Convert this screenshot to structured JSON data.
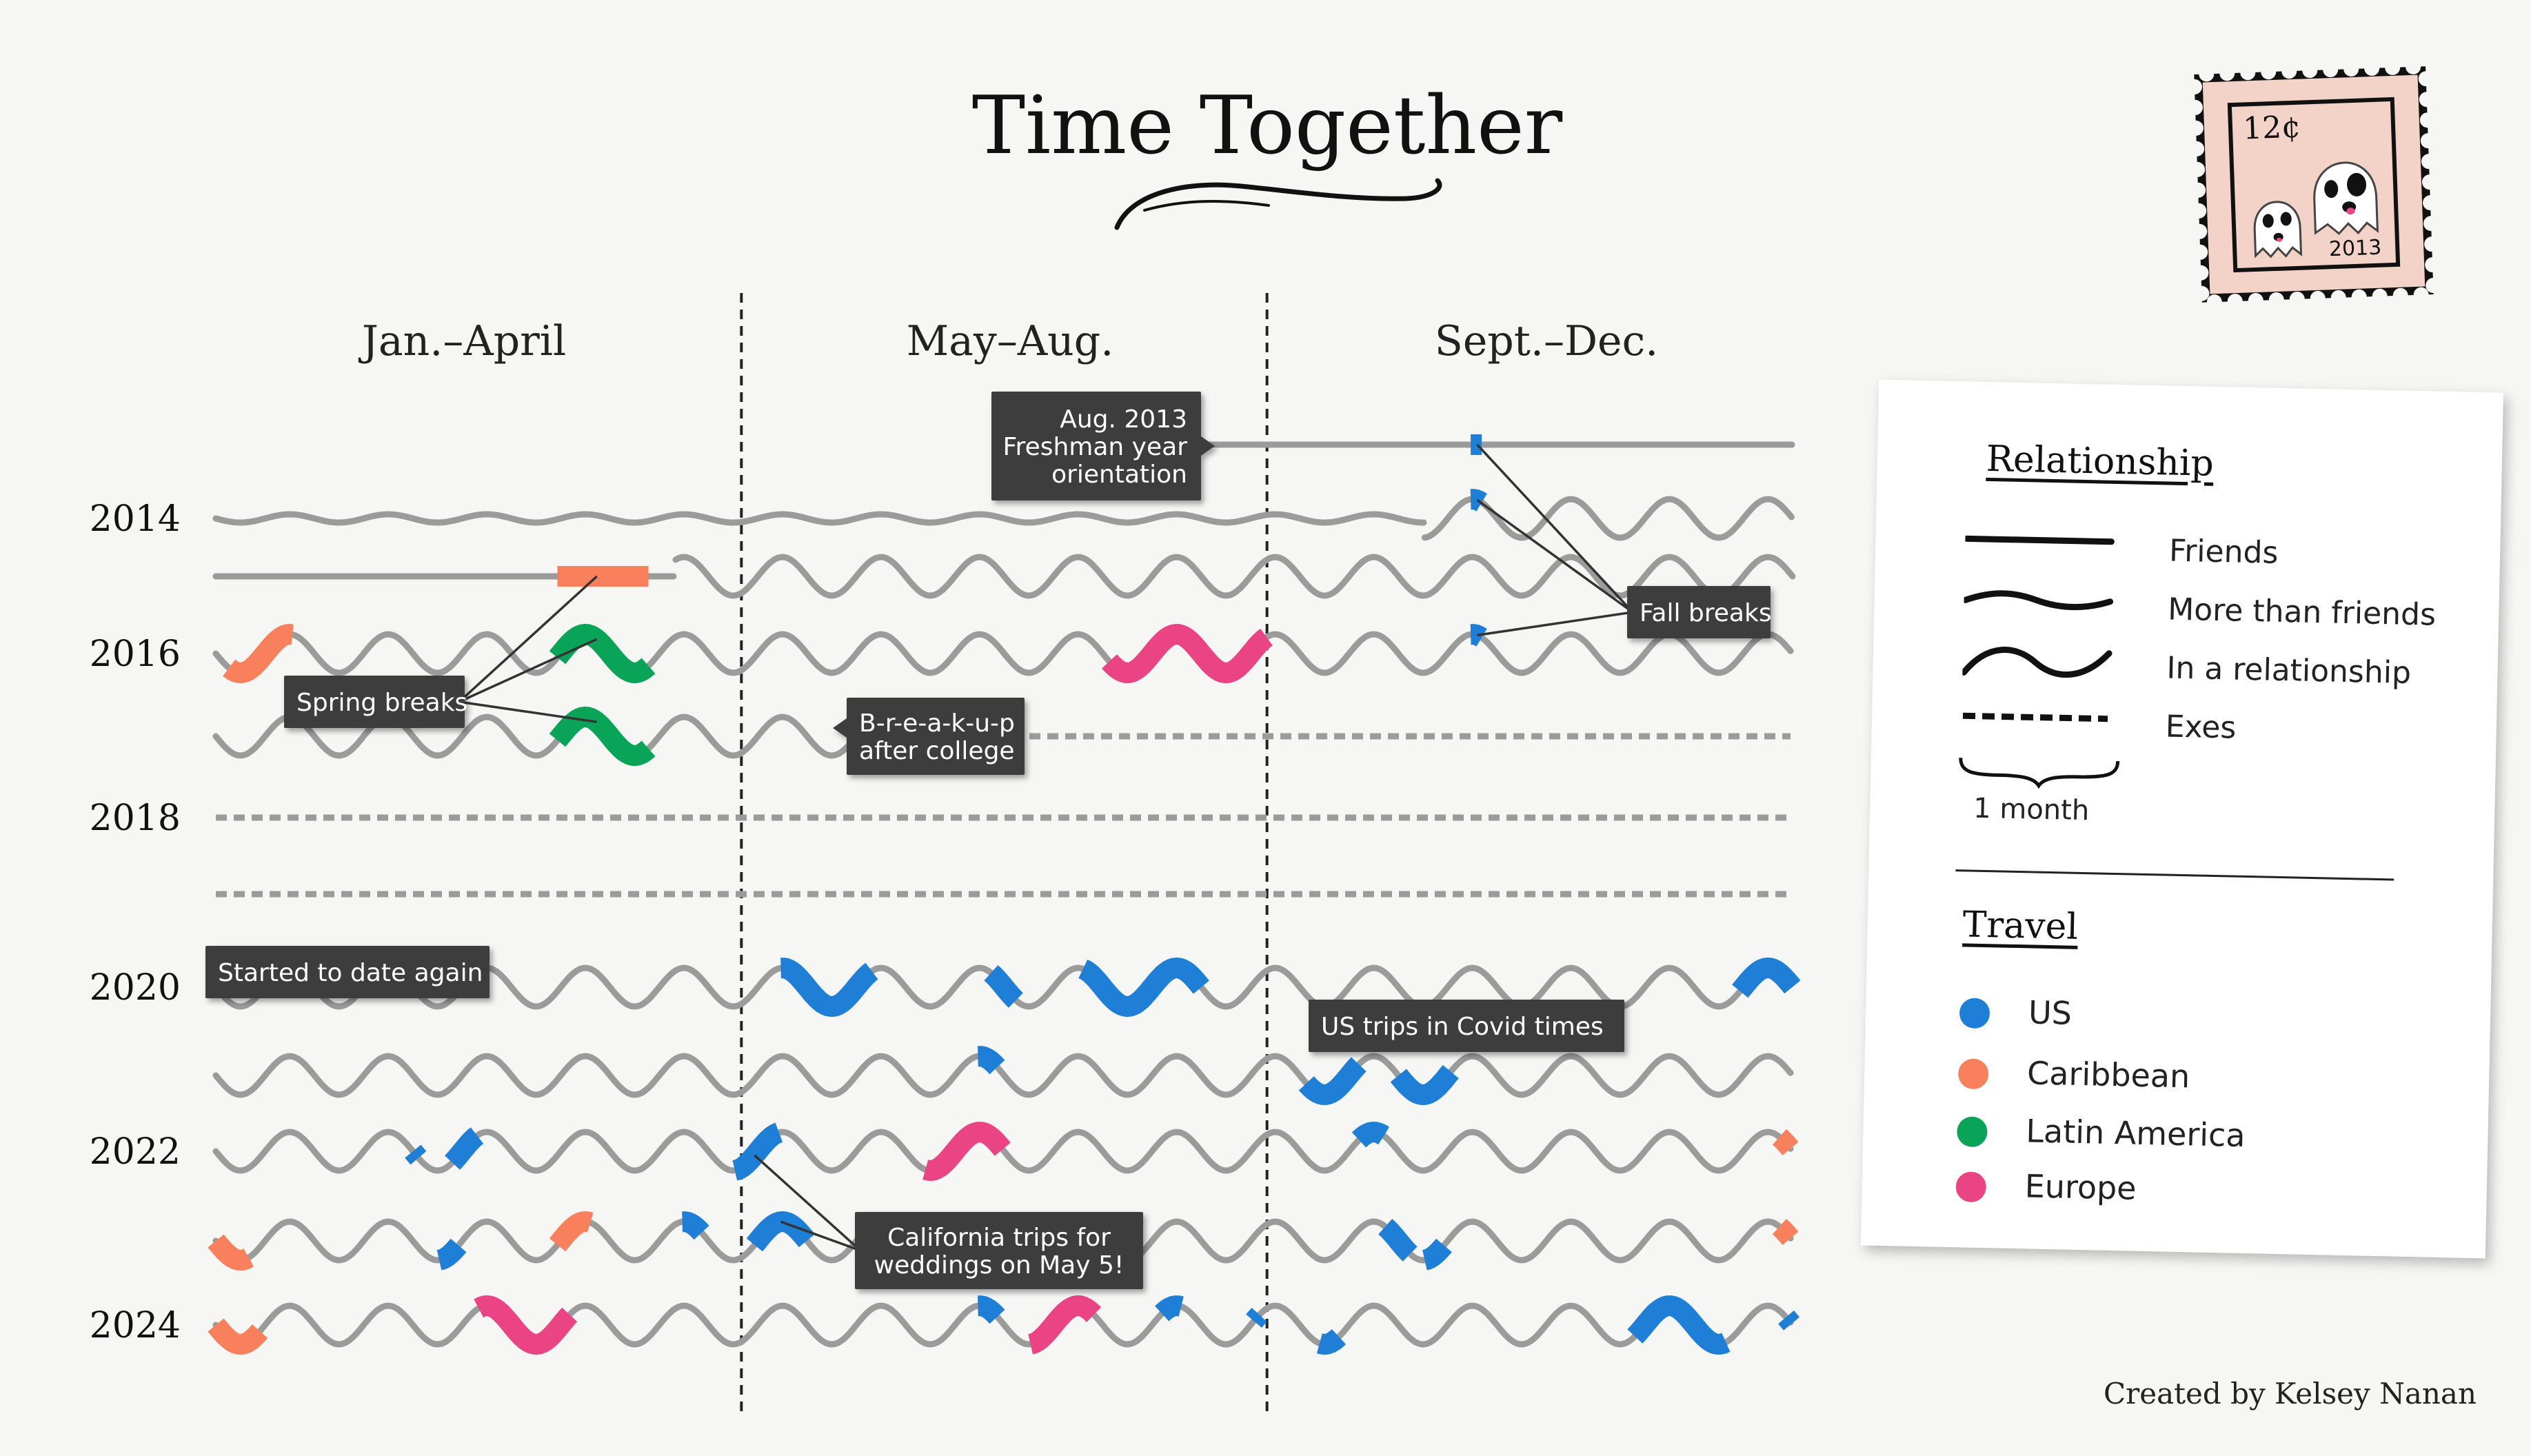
{
  "title": "Time Together",
  "columns": [
    "Jan.–April",
    "May–Aug.",
    "Sept.–Dec."
  ],
  "credit": "Created by Kelsey Nanan",
  "colors": {
    "line": "#9b9b9b",
    "US": "#1f7fd6",
    "Caribbean": "#f9805c",
    "Latin America": "#0aa459",
    "Europe": "#ea4484",
    "callout_bg": "#3e3e3e"
  },
  "legend": {
    "relationship_title": "Relationship",
    "relationship_items": [
      {
        "style": "friends",
        "label": "Friends"
      },
      {
        "style": "more",
        "label": "More than friends"
      },
      {
        "style": "relationship",
        "label": "In a relationship"
      },
      {
        "style": "exes",
        "label": "Exes"
      }
    ],
    "month_label": "1 month",
    "travel_title": "Travel",
    "travel_items": [
      "US",
      "Caribbean",
      "Latin America",
      "Europe"
    ]
  },
  "stamp": {
    "price": "12¢",
    "year": "2013",
    "icon": "ghost-icon"
  },
  "chart_data": {
    "type": "timeline",
    "title": "Time Together",
    "x_period_labels": [
      "Jan.–April",
      "May–Aug.",
      "Sept.–Dec."
    ],
    "year_labels": [
      {
        "label": "2014",
        "row": "2014"
      },
      {
        "label": "2016",
        "row": "2016"
      },
      {
        "label": "2018",
        "row": "2018"
      },
      {
        "label": "2020",
        "row": "2020"
      },
      {
        "label": "2022",
        "row": "2022"
      },
      {
        "label": "2024",
        "row": "2024"
      }
    ],
    "rows": [
      {
        "year": "2013",
        "segments": [
          {
            "from": 8,
            "to": 13,
            "style": "friends"
          }
        ]
      },
      {
        "year": "2014",
        "segments": [
          {
            "from": 1,
            "to": 10.2,
            "style": "more"
          },
          {
            "from": 10.2,
            "to": 13,
            "style": "relationship"
          }
        ]
      },
      {
        "year": "2015",
        "segments": [
          {
            "from": 1,
            "to": 4.5,
            "style": "friends"
          },
          {
            "from": 4.5,
            "to": 13,
            "style": "relationship"
          }
        ]
      },
      {
        "year": "2016",
        "segments": [
          {
            "from": 1,
            "to": 13,
            "style": "relationship"
          }
        ]
      },
      {
        "year": "2017",
        "segments": [
          {
            "from": 1,
            "to": 6.1,
            "style": "relationship"
          },
          {
            "from": 6.1,
            "to": 13,
            "style": "exes"
          }
        ]
      },
      {
        "year": "2018",
        "segments": [
          {
            "from": 1,
            "to": 13,
            "style": "exes"
          }
        ]
      },
      {
        "year": "2019",
        "segments": [
          {
            "from": 1,
            "to": 13,
            "style": "exes"
          }
        ]
      },
      {
        "year": "2020",
        "segments": [
          {
            "from": 1,
            "to": 13,
            "style": "relationship"
          }
        ]
      },
      {
        "year": "2021",
        "segments": [
          {
            "from": 1,
            "to": 13,
            "style": "relationship"
          }
        ]
      },
      {
        "year": "2022",
        "segments": [
          {
            "from": 1,
            "to": 13,
            "style": "relationship"
          }
        ]
      },
      {
        "year": "2023",
        "segments": [
          {
            "from": 1,
            "to": 13,
            "style": "relationship"
          }
        ]
      },
      {
        "year": "2024",
        "segments": [
          {
            "from": 1,
            "to": 13,
            "style": "relationship"
          }
        ]
      }
    ],
    "trips": [
      {
        "year": "2013",
        "region": "US",
        "start": 10.55,
        "end": 10.65
      },
      {
        "year": "2014",
        "region": "US",
        "start": 10.55,
        "end": 10.65
      },
      {
        "year": "2015",
        "region": "Caribbean",
        "start": 3.6,
        "end": 4.3
      },
      {
        "year": "2016",
        "region": "Caribbean",
        "start": 1.1,
        "end": 1.6
      },
      {
        "year": "2016",
        "region": "Latin America",
        "start": 3.6,
        "end": 4.3
      },
      {
        "year": "2016",
        "region": "Europe",
        "start": 7.8,
        "end": 9.0
      },
      {
        "year": "2016",
        "region": "US",
        "start": 10.55,
        "end": 10.65
      },
      {
        "year": "2017",
        "region": "Latin America",
        "start": 3.6,
        "end": 4.3
      },
      {
        "year": "2020",
        "region": "US",
        "start": 5.3,
        "end": 6.0
      },
      {
        "year": "2020",
        "region": "US",
        "start": 6.9,
        "end": 7.1
      },
      {
        "year": "2020",
        "region": "US",
        "start": 7.6,
        "end": 8.5
      },
      {
        "year": "2020",
        "region": "US",
        "start": 12.6,
        "end": 13.0
      },
      {
        "year": "2021",
        "region": "US",
        "start": 6.8,
        "end": 6.95
      },
      {
        "year": "2021",
        "region": "US",
        "start": 9.3,
        "end": 9.7
      },
      {
        "year": "2021",
        "region": "US",
        "start": 10.0,
        "end": 10.4
      },
      {
        "year": "2022",
        "region": "US",
        "start": 2.5,
        "end": 2.55
      },
      {
        "year": "2022",
        "region": "US",
        "start": 2.8,
        "end": 3.0
      },
      {
        "year": "2022",
        "region": "US",
        "start": 4.95,
        "end": 5.3
      },
      {
        "year": "2022",
        "region": "Europe",
        "start": 6.4,
        "end": 7.0
      },
      {
        "year": "2022",
        "region": "US",
        "start": 9.7,
        "end": 9.9
      },
      {
        "year": "2022",
        "region": "Caribbean",
        "start": 12.9,
        "end": 13.0
      },
      {
        "year": "2023",
        "region": "Caribbean",
        "start": 1.0,
        "end": 1.25
      },
      {
        "year": "2023",
        "region": "US",
        "start": 2.7,
        "end": 2.85
      },
      {
        "year": "2023",
        "region": "Caribbean",
        "start": 3.6,
        "end": 3.85
      },
      {
        "year": "2023",
        "region": "US",
        "start": 4.55,
        "end": 4.7
      },
      {
        "year": "2023",
        "region": "US",
        "start": 5.1,
        "end": 5.5
      },
      {
        "year": "2023",
        "region": "US",
        "start": 9.9,
        "end": 10.1
      },
      {
        "year": "2023",
        "region": "US",
        "start": 10.2,
        "end": 10.35
      },
      {
        "year": "2023",
        "region": "Caribbean",
        "start": 12.9,
        "end": 13.0
      },
      {
        "year": "2024",
        "region": "Caribbean",
        "start": 1.0,
        "end": 1.35
      },
      {
        "year": "2024",
        "region": "Europe",
        "start": 3.0,
        "end": 3.7
      },
      {
        "year": "2024",
        "region": "US",
        "start": 6.8,
        "end": 6.95
      },
      {
        "year": "2024",
        "region": "Europe",
        "start": 7.2,
        "end": 7.7
      },
      {
        "year": "2024",
        "region": "US",
        "start": 8.2,
        "end": 8.35
      },
      {
        "year": "2024",
        "region": "US",
        "start": 8.9,
        "end": 8.95
      },
      {
        "year": "2024",
        "region": "US",
        "start": 9.4,
        "end": 9.55
      },
      {
        "year": "2024",
        "region": "US",
        "start": 11.8,
        "end": 12.5
      },
      {
        "year": "2024",
        "region": "US",
        "start": 12.95,
        "end": 13.0
      }
    ],
    "annotations": [
      {
        "id": "orientation",
        "lines": [
          "Aug. 2013",
          "Freshman year",
          "orientation"
        ],
        "align": "right",
        "pointer": "right",
        "targets": []
      },
      {
        "id": "fall",
        "lines": [
          "Fall breaks"
        ],
        "align": "left",
        "pointer": "none",
        "targets": [
          {
            "year": "2013",
            "month": 10.6
          },
          {
            "year": "2014",
            "month": 10.6
          },
          {
            "year": "2016",
            "month": 10.6
          }
        ]
      },
      {
        "id": "spring",
        "lines": [
          "Spring breaks"
        ],
        "align": "left",
        "pointer": "none",
        "targets": [
          {
            "year": "2015",
            "month": 3.9
          },
          {
            "year": "2016",
            "month": 3.9
          },
          {
            "year": "2017",
            "month": 3.9
          }
        ]
      },
      {
        "id": "breakup",
        "lines": [
          "B-r-e-a-k-u-p",
          "after college"
        ],
        "align": "left",
        "pointer": "left",
        "targets": []
      },
      {
        "id": "again",
        "lines": [
          "Started to date again"
        ],
        "align": "left",
        "pointer": "none",
        "targets": []
      },
      {
        "id": "covid",
        "lines": [
          "US trips in Covid times"
        ],
        "align": "left",
        "pointer": "none",
        "targets": []
      },
      {
        "id": "california",
        "lines": [
          "California trips for",
          "weddings on May 5!"
        ],
        "align": "center",
        "pointer": "none",
        "targets": [
          {
            "year": "2022",
            "month": 5.1
          },
          {
            "year": "2023",
            "month": 5.3
          }
        ]
      }
    ]
  }
}
